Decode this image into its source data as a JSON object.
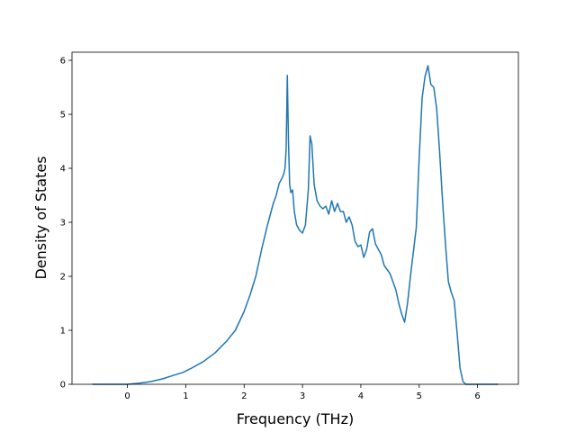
{
  "chart_data": {
    "type": "line",
    "title": "",
    "xlabel": "Frequency (THz)",
    "ylabel": "Density of States",
    "xlim": [
      -0.95,
      6.7
    ],
    "ylim": [
      0,
      6.15
    ],
    "xticks": [
      0,
      1,
      2,
      3,
      4,
      5,
      6
    ],
    "yticks": [
      0,
      1,
      2,
      3,
      4,
      5,
      6
    ],
    "grid": false,
    "legend": "none",
    "series_color": "#1f77b4",
    "series": [
      {
        "x": [
          -0.6,
          -0.3,
          0,
          0.2,
          0.4,
          0.6,
          0.8,
          0.95,
          1.1,
          1.3,
          1.5,
          1.7,
          1.85,
          2.0,
          2.1,
          2.2,
          2.3,
          2.4,
          2.5,
          2.55,
          2.6,
          2.65,
          2.68,
          2.7,
          2.72,
          2.74,
          2.76,
          2.78,
          2.8,
          2.83,
          2.86,
          2.9,
          2.95,
          3.0,
          3.05,
          3.1,
          3.13,
          3.16,
          3.2,
          3.25,
          3.3,
          3.35,
          3.4,
          3.45,
          3.5,
          3.55,
          3.6,
          3.65,
          3.7,
          3.75,
          3.8,
          3.85,
          3.9,
          3.95,
          4.0,
          4.05,
          4.1,
          4.15,
          4.2,
          4.25,
          4.3,
          4.35,
          4.4,
          4.5,
          4.6,
          4.65,
          4.7,
          4.75,
          4.8,
          4.85,
          4.95,
          5.0,
          5.05,
          5.1,
          5.15,
          5.2,
          5.25,
          5.3,
          5.35,
          5.4,
          5.45,
          5.5,
          5.55,
          5.6,
          5.65,
          5.7,
          5.75,
          5.8,
          5.9,
          6.0,
          6.2,
          6.35
        ],
        "y": [
          0,
          0,
          0,
          0.02,
          0.05,
          0.1,
          0.17,
          0.22,
          0.3,
          0.42,
          0.58,
          0.8,
          1.0,
          1.35,
          1.65,
          2.0,
          2.5,
          2.95,
          3.35,
          3.5,
          3.72,
          3.82,
          3.9,
          4.0,
          4.35,
          5.72,
          4.5,
          3.7,
          3.55,
          3.6,
          3.2,
          2.95,
          2.85,
          2.8,
          2.95,
          3.6,
          4.6,
          4.45,
          3.7,
          3.4,
          3.3,
          3.25,
          3.3,
          3.15,
          3.4,
          3.2,
          3.35,
          3.2,
          3.2,
          3.0,
          3.1,
          2.95,
          2.65,
          2.55,
          2.58,
          2.35,
          2.5,
          2.82,
          2.88,
          2.6,
          2.5,
          2.4,
          2.2,
          2.05,
          1.75,
          1.5,
          1.3,
          1.15,
          1.5,
          2.0,
          2.9,
          4.2,
          5.3,
          5.7,
          5.9,
          5.55,
          5.5,
          5.1,
          4.3,
          3.4,
          2.6,
          1.9,
          1.7,
          1.55,
          0.95,
          0.3,
          0.05,
          0,
          0,
          0,
          0,
          0
        ]
      }
    ]
  }
}
